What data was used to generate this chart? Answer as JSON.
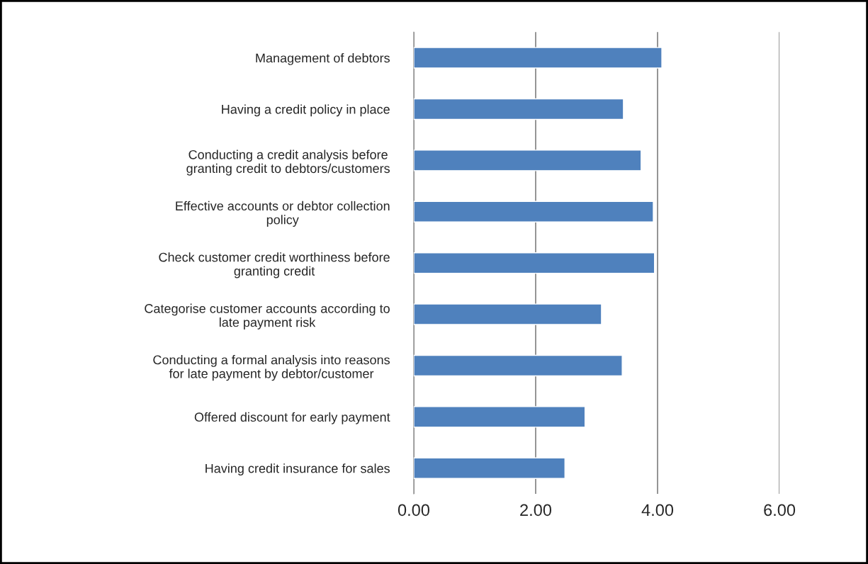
{
  "chart_data": {
    "type": "bar",
    "orientation": "horizontal",
    "categories": [
      "Management of debtors",
      "Having a credit policy in place",
      "Conducting a credit analysis before\ngranting credit to debtors/customers",
      "Effective accounts or debtor collection\npolicy",
      "Check customer credit worthiness before\ngranting credit",
      "Categorise customer accounts according to\nlate payment risk",
      "Conducting a formal analysis into reasons\nfor late payment by debtor/customer",
      "Offered discount for early payment",
      "Having credit insurance for sales"
    ],
    "values": [
      4.07,
      3.44,
      3.73,
      3.93,
      3.95,
      3.08,
      3.42,
      2.81,
      2.48
    ],
    "color": "#4f81bd",
    "xlim": [
      0,
      6
    ],
    "xticks": [
      {
        "value": 0,
        "label": "0.00"
      },
      {
        "value": 2,
        "label": "2.00"
      },
      {
        "value": 4,
        "label": "4.00"
      },
      {
        "value": 6,
        "label": "6.00"
      }
    ],
    "grid": "x"
  }
}
